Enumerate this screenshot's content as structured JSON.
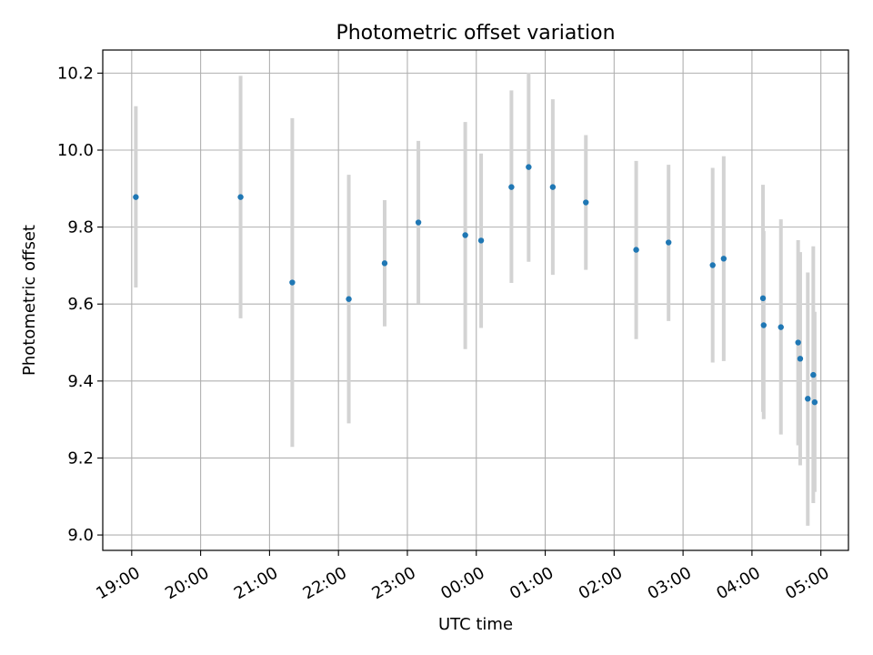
{
  "chart_data": {
    "type": "scatter",
    "title": "Photometric offset variation",
    "xlabel": "UTC time",
    "ylabel": "Photometric offset",
    "x_unit": "hours",
    "xlim": [
      18.58,
      29.4
    ],
    "ylim": [
      8.96,
      10.26
    ],
    "grid": true,
    "marker_color": "#1f77b4",
    "errorbar_color": "#d3d3d3",
    "x_ticks": [
      {
        "value": 19,
        "label": "19:00"
      },
      {
        "value": 20,
        "label": "20:00"
      },
      {
        "value": 21,
        "label": "21:00"
      },
      {
        "value": 22,
        "label": "22:00"
      },
      {
        "value": 23,
        "label": "23:00"
      },
      {
        "value": 24,
        "label": "00:00"
      },
      {
        "value": 25,
        "label": "01:00"
      },
      {
        "value": 26,
        "label": "02:00"
      },
      {
        "value": 27,
        "label": "03:00"
      },
      {
        "value": 28,
        "label": "04:00"
      },
      {
        "value": 29,
        "label": "05:00"
      }
    ],
    "y_ticks": [
      {
        "value": 9.0,
        "label": "9.0"
      },
      {
        "value": 9.2,
        "label": "9.2"
      },
      {
        "value": 9.4,
        "label": "9.4"
      },
      {
        "value": 9.6,
        "label": "9.6"
      },
      {
        "value": 9.8,
        "label": "9.8"
      },
      {
        "value": 10.0,
        "label": "10.0"
      },
      {
        "value": 10.2,
        "label": "10.2"
      }
    ],
    "points": [
      {
        "x": 19.06,
        "y": 9.878,
        "ylow": 9.643,
        "yhigh": 10.114
      },
      {
        "x": 20.58,
        "y": 9.878,
        "ylow": 9.563,
        "yhigh": 10.193
      },
      {
        "x": 21.33,
        "y": 9.656,
        "ylow": 9.229,
        "yhigh": 10.083
      },
      {
        "x": 22.15,
        "y": 9.613,
        "ylow": 9.29,
        "yhigh": 9.936
      },
      {
        "x": 22.67,
        "y": 9.706,
        "ylow": 9.542,
        "yhigh": 9.87
      },
      {
        "x": 23.16,
        "y": 9.812,
        "ylow": 9.601,
        "yhigh": 10.024
      },
      {
        "x": 23.84,
        "y": 9.779,
        "ylow": 9.483,
        "yhigh": 10.073
      },
      {
        "x": 24.07,
        "y": 9.765,
        "ylow": 9.538,
        "yhigh": 9.991
      },
      {
        "x": 24.51,
        "y": 9.904,
        "ylow": 9.655,
        "yhigh": 10.155
      },
      {
        "x": 24.76,
        "y": 9.956,
        "ylow": 9.71,
        "yhigh": 10.201
      },
      {
        "x": 25.11,
        "y": 9.904,
        "ylow": 9.676,
        "yhigh": 10.132
      },
      {
        "x": 25.59,
        "y": 9.864,
        "ylow": 9.689,
        "yhigh": 10.039
      },
      {
        "x": 26.32,
        "y": 9.741,
        "ylow": 9.509,
        "yhigh": 9.972
      },
      {
        "x": 26.79,
        "y": 9.76,
        "ylow": 9.556,
        "yhigh": 9.962
      },
      {
        "x": 27.43,
        "y": 9.701,
        "ylow": 9.448,
        "yhigh": 9.954
      },
      {
        "x": 27.59,
        "y": 9.718,
        "ylow": 9.452,
        "yhigh": 9.984
      },
      {
        "x": 28.16,
        "y": 9.615,
        "ylow": 9.32,
        "yhigh": 9.91
      },
      {
        "x": 28.17,
        "y": 9.545,
        "ylow": 9.301,
        "yhigh": 9.79
      },
      {
        "x": 28.42,
        "y": 9.54,
        "ylow": 9.261,
        "yhigh": 9.82
      },
      {
        "x": 28.67,
        "y": 9.5,
        "ylow": 9.233,
        "yhigh": 9.766
      },
      {
        "x": 28.7,
        "y": 9.458,
        "ylow": 9.181,
        "yhigh": 9.735
      },
      {
        "x": 28.81,
        "y": 9.354,
        "ylow": 9.024,
        "yhigh": 9.682
      },
      {
        "x": 28.89,
        "y": 9.416,
        "ylow": 9.083,
        "yhigh": 9.75
      },
      {
        "x": 28.91,
        "y": 9.345,
        "ylow": 9.112,
        "yhigh": 9.58
      }
    ]
  }
}
